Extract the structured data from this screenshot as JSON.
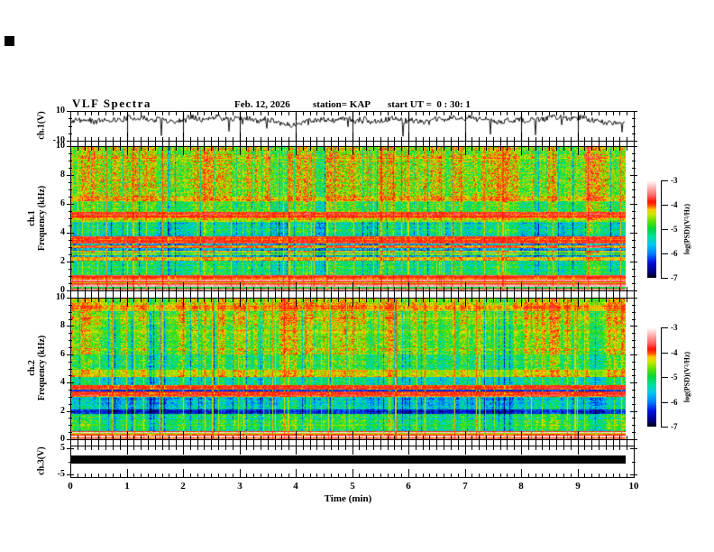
{
  "title": {
    "main": "VLF Spectra",
    "date": "Feb. 12, 2026",
    "station": "station= KAP",
    "start_ut": "start UT =  0 : 30: 1"
  },
  "axes": {
    "time": {
      "label": "Time (min)",
      "range": [
        0,
        10
      ],
      "major_ticks": [
        0,
        1,
        2,
        3,
        4,
        5,
        6,
        7,
        8,
        9,
        10
      ],
      "minor_per_major": 8
    },
    "ch1_wave": {
      "label": "ch.1(V)",
      "range": [
        -10,
        10
      ],
      "major_ticks": [
        10,
        -10
      ],
      "minor_ticks": [
        5,
        0,
        -5
      ]
    },
    "ch1_spec": {
      "line1": "ch.1",
      "line2": "Frequency (kHz)"
    },
    "ch2_spec": {
      "line1": "ch.2",
      "line2": "Frequency (kHz)"
    },
    "spec_y": {
      "range": [
        0,
        10
      ],
      "major_ticks": [
        10,
        8,
        6,
        4,
        2,
        0
      ],
      "minor_step": 0.5
    },
    "ch3": {
      "label": "ch.3(V)",
      "range": [
        -6,
        6
      ],
      "major_ticks": [
        5,
        -5
      ],
      "minor_ticks": [
        0
      ]
    },
    "colorbar": {
      "label": "log(PSD)(V²/Hz)",
      "range": [
        -7,
        -3
      ],
      "ticks": [
        -3,
        -4,
        -5,
        -6,
        -7
      ]
    }
  },
  "palette": {
    "stops": [
      {
        "t": 0.0,
        "c": "#000014"
      },
      {
        "t": 0.06,
        "c": "#000080"
      },
      {
        "t": 0.16,
        "c": "#0010e0"
      },
      {
        "t": 0.25,
        "c": "#0080ff"
      },
      {
        "t": 0.34,
        "c": "#00c8f0"
      },
      {
        "t": 0.42,
        "c": "#00e0a0"
      },
      {
        "t": 0.5,
        "c": "#00d840"
      },
      {
        "t": 0.58,
        "c": "#60e000"
      },
      {
        "t": 0.65,
        "c": "#c8e800"
      },
      {
        "t": 0.7,
        "c": "#ffc800"
      },
      {
        "t": 0.74,
        "c": "#ff5000"
      },
      {
        "t": 0.78,
        "c": "#ff1000"
      },
      {
        "t": 0.84,
        "c": "#ff6060"
      },
      {
        "t": 0.92,
        "c": "#ffb0b0"
      },
      {
        "t": 1.0,
        "c": "#ffffff"
      }
    ]
  },
  "chart_data": [
    {
      "id": "ch1_waveform",
      "type": "line",
      "ylabel": "ch.1(V)",
      "xlabel": "Time (min)",
      "xlim": [
        0,
        9.84
      ],
      "ylim": [
        -10,
        10
      ],
      "description": "Dense noisy voltage trace, mean near +4 V, excursions +9 to -3 V with sparse deep negative spikes",
      "synthesis": {
        "seed": 11,
        "baseline": 4.3,
        "slow_amp": 2.3,
        "med_amp": 1.7,
        "fast_amp": 1.9,
        "dip_prob": 0.012,
        "clip": [
          -9.5,
          9.2
        ],
        "spikes": [
          {
            "t_frac": 0.163,
            "v": -6.5
          },
          {
            "t_frac": 0.285,
            "v": -3.5
          },
          {
            "t_frac": 0.6,
            "v": -7.0
          },
          {
            "t_frac": 0.758,
            "v": -5.5
          },
          {
            "t_frac": 0.838,
            "v": -6.0
          },
          {
            "t_frac": 0.995,
            "v": -4.0
          }
        ]
      }
    },
    {
      "id": "ch1_spectrogram",
      "type": "heatmap",
      "seed": 21,
      "time_range": [
        0,
        9.84
      ],
      "freq_range": [
        0,
        10
      ],
      "colorbar_range": [
        -7,
        -3
      ],
      "colorbar_label": "log(PSD)(V²/Hz)",
      "red_vlines": 50,
      "dark_vlines": 45,
      "bands": [
        {
          "f": [
            6.55,
            10.0
          ],
          "level": -4.55,
          "var": 0.55,
          "streak": 1.0
        },
        {
          "f": [
            6.2,
            6.55
          ],
          "level": -4.25,
          "var": 0.35,
          "streak": 0.7
        },
        {
          "f": [
            5.5,
            6.2
          ],
          "level": -4.9,
          "var": 0.5,
          "streak": 0.9
        },
        {
          "f": [
            5.05,
            5.5
          ],
          "level": -3.9,
          "var": 0.18,
          "streak": 0.25
        },
        {
          "f": [
            4.8,
            5.05
          ],
          "level": -4.45,
          "var": 0.3,
          "streak": 0.6
        },
        {
          "f": [
            3.75,
            4.8
          ],
          "level": -5.35,
          "var": 0.55,
          "streak": 0.95
        },
        {
          "f": [
            3.3,
            3.75
          ],
          "level": -3.95,
          "var": 0.2,
          "streak": 0.25
        },
        {
          "f": [
            2.35,
            3.3
          ],
          "level": -5.75,
          "var": 0.5,
          "streak": 0.8
        },
        {
          "f": [
            2.05,
            2.35
          ],
          "level": -4.3,
          "var": 0.25,
          "streak": 0.35
        },
        {
          "f": [
            1.05,
            2.05
          ],
          "level": -5.15,
          "var": 0.5,
          "streak": 0.8
        },
        {
          "f": [
            0.0,
            1.05
          ],
          "level": -3.5,
          "var": 0.15,
          "streak": 0.15,
          "pale": true
        }
      ],
      "hlines": [
        {
          "f": 9.2,
          "level": -4.3
        },
        {
          "f": 3.05,
          "level": -4.05
        },
        {
          "f": 2.7,
          "level": -4.3
        },
        {
          "f": 2.5,
          "level": -4.5
        },
        {
          "f": 0.85,
          "level": -4.5
        },
        {
          "f": 0.55,
          "level": -4.35
        },
        {
          "f": 0.18,
          "level": -4.7
        }
      ]
    },
    {
      "id": "ch2_spectrogram",
      "type": "heatmap",
      "seed": 57,
      "time_range": [
        0,
        9.84
      ],
      "freq_range": [
        0,
        10
      ],
      "colorbar_range": [
        -7,
        -3
      ],
      "colorbar_label": "log(PSD)(V²/Hz)",
      "red_vlines": 48,
      "dark_vlines": 42,
      "bands": [
        {
          "f": [
            9.55,
            10.0
          ],
          "level": -4.5,
          "var": 0.4,
          "streak": 0.8
        },
        {
          "f": [
            9.1,
            9.55
          ],
          "level": -4.15,
          "var": 0.25,
          "streak": 0.5
        },
        {
          "f": [
            6.0,
            9.1
          ],
          "level": -4.6,
          "var": 0.5,
          "streak": 1.0
        },
        {
          "f": [
            4.95,
            6.0
          ],
          "level": -4.95,
          "var": 0.5,
          "streak": 0.9
        },
        {
          "f": [
            4.45,
            4.95
          ],
          "level": -4.4,
          "var": 0.3,
          "streak": 0.6
        },
        {
          "f": [
            3.85,
            4.45
          ],
          "level": -5.2,
          "var": 0.45,
          "streak": 0.8
        },
        {
          "f": [
            3.0,
            3.85
          ],
          "level": -3.9,
          "var": 0.2,
          "streak": 0.25
        },
        {
          "f": [
            2.1,
            3.0
          ],
          "level": -5.6,
          "var": 0.5,
          "streak": 0.8
        },
        {
          "f": [
            1.8,
            2.1
          ],
          "level": -6.4,
          "var": 0.35,
          "streak": 0.5
        },
        {
          "f": [
            0.6,
            1.8
          ],
          "level": -5.1,
          "var": 0.5,
          "streak": 0.8
        },
        {
          "f": [
            0.0,
            0.6
          ],
          "level": -3.5,
          "var": 0.15,
          "streak": 0.15,
          "pale": true
        }
      ],
      "hlines": [
        {
          "f": 8.6,
          "level": -4.4
        },
        {
          "f": 7.6,
          "level": -4.35
        },
        {
          "f": 3.45,
          "level": -6.2
        },
        {
          "f": 0.95,
          "level": -4.8
        },
        {
          "f": 0.35,
          "level": -4.4
        }
      ]
    },
    {
      "id": "ch3_bar",
      "type": "line",
      "ylabel": "ch.3(V)",
      "ylim": [
        -6,
        6
      ],
      "description": "Saturated constant-amplitude signal rendered as a solid black band",
      "band_v": [
        -1.3,
        1.7
      ]
    }
  ]
}
